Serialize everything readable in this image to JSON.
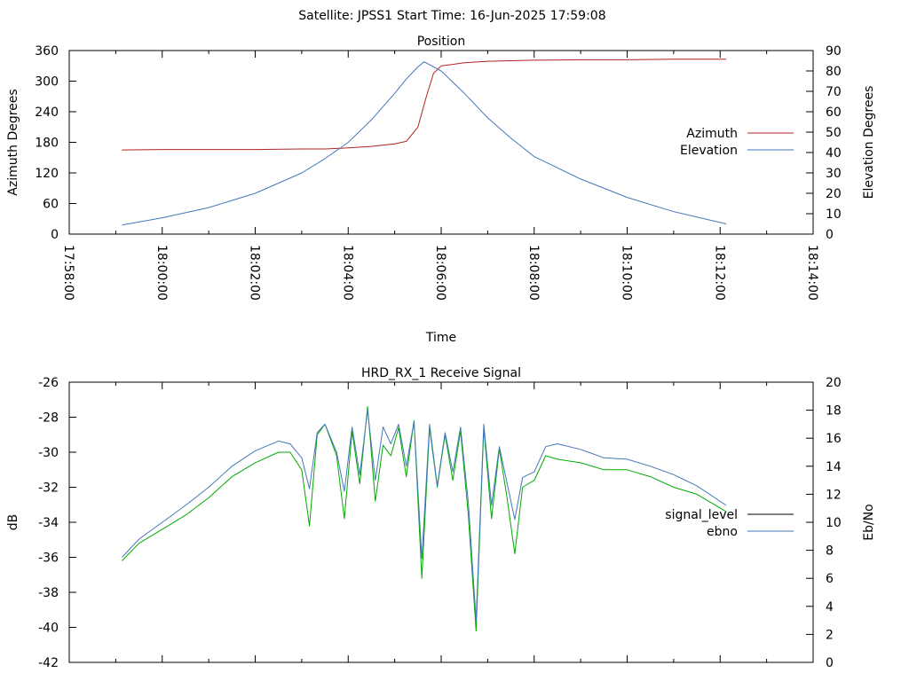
{
  "header": {
    "satellite": "Satellite: JPSS1",
    "start_time": "Start Time: 16-Jun-2025 17:59:08"
  },
  "chart_data": [
    {
      "type": "line",
      "title": "Position",
      "xlabel": "Time",
      "ylabel": "Azimuth Degrees",
      "y2label": "Elevation Degrees",
      "xlim": [
        "17:58:00",
        "18:14:00"
      ],
      "ylim": [
        0,
        360
      ],
      "y2lim": [
        0,
        90
      ],
      "x_ticks": [
        "17:58:00",
        "18:00:00",
        "18:02:00",
        "18:04:00",
        "18:06:00",
        "18:08:00",
        "18:10:00",
        "18:12:00",
        "18:14:00"
      ],
      "y_ticks": [
        "0",
        "60",
        "120",
        "180",
        "240",
        "300",
        "360"
      ],
      "y2_ticks": [
        "0",
        "10",
        "20",
        "30",
        "40",
        "50",
        "60",
        "70",
        "80",
        "90"
      ],
      "legend_position": "right",
      "series": [
        {
          "name": "Azimuth",
          "axis": "left",
          "color": "#b22222",
          "x": [
            "17:59:08",
            "18:00:00",
            "18:01:00",
            "18:02:00",
            "18:03:00",
            "18:03:30",
            "18:04:00",
            "18:04:30",
            "18:05:00",
            "18:05:15",
            "18:05:30",
            "18:05:40",
            "18:05:50",
            "18:06:00",
            "18:06:30",
            "18:07:00",
            "18:08:00",
            "18:09:00",
            "18:10:00",
            "18:11:00",
            "18:12:08"
          ],
          "values": [
            165,
            166,
            166,
            166,
            167,
            167,
            169,
            172,
            177,
            182,
            210,
            265,
            315,
            330,
            336,
            339,
            341,
            342,
            342,
            343,
            343
          ]
        },
        {
          "name": "Elevation",
          "axis": "right",
          "color": "#4477bb",
          "x": [
            "17:59:08",
            "18:00:00",
            "18:01:00",
            "18:02:00",
            "18:03:00",
            "18:03:30",
            "18:04:00",
            "18:04:30",
            "18:05:00",
            "18:05:15",
            "18:05:30",
            "18:05:38",
            "18:06:00",
            "18:06:30",
            "18:07:00",
            "18:07:30",
            "18:08:00",
            "18:09:00",
            "18:10:00",
            "18:11:00",
            "18:12:08"
          ],
          "values": [
            4.5,
            8,
            13,
            20,
            30,
            37,
            45,
            56,
            69,
            76,
            82,
            84.5,
            80,
            69,
            57,
            47,
            38,
            27,
            18,
            11,
            5
          ]
        }
      ]
    },
    {
      "type": "line",
      "title": "HRD_RX_1 Receive Signal",
      "ylabel": "dB",
      "y2label": "Eb/No",
      "xlim": [
        "17:58:00",
        "18:14:00"
      ],
      "ylim": [
        -42,
        -26
      ],
      "y2lim": [
        0,
        20
      ],
      "y_ticks": [
        "-42",
        "-40",
        "-38",
        "-36",
        "-34",
        "-32",
        "-30",
        "-28",
        "-26"
      ],
      "y2_ticks": [
        "0",
        "2",
        "4",
        "6",
        "8",
        "10",
        "12",
        "14",
        "16",
        "18",
        "20"
      ],
      "legend_position": "right",
      "series": [
        {
          "name": "signal_level",
          "axis": "left",
          "color": "#00aa00",
          "x": [
            "17:59:08",
            "17:59:30",
            "18:00:00",
            "18:00:30",
            "18:01:00",
            "18:01:30",
            "18:02:00",
            "18:02:30",
            "18:02:45",
            "18:03:00",
            "18:03:10",
            "18:03:20",
            "18:03:30",
            "18:03:45",
            "18:03:55",
            "18:04:05",
            "18:04:15",
            "18:04:25",
            "18:04:35",
            "18:04:45",
            "18:04:55",
            "18:05:05",
            "18:05:15",
            "18:05:25",
            "18:05:35",
            "18:05:45",
            "18:05:55",
            "18:06:05",
            "18:06:15",
            "18:06:25",
            "18:06:35",
            "18:06:45",
            "18:06:55",
            "18:07:05",
            "18:07:15",
            "18:07:25",
            "18:07:35",
            "18:07:45",
            "18:08:00",
            "18:08:15",
            "18:08:30",
            "18:09:00",
            "18:09:30",
            "18:10:00",
            "18:10:30",
            "18:11:00",
            "18:11:30",
            "18:12:08"
          ],
          "values": [
            -36.2,
            -35.2,
            -34.4,
            -33.6,
            -32.6,
            -31.4,
            -30.6,
            -30.0,
            -30.0,
            -31.0,
            -34.2,
            -29.0,
            -28.4,
            -30.2,
            -33.8,
            -28.8,
            -31.8,
            -27.4,
            -32.8,
            -29.6,
            -30.2,
            -28.6,
            -31.4,
            -28.2,
            -37.2,
            -28.6,
            -32.0,
            -29.0,
            -31.6,
            -28.8,
            -33.6,
            -40.2,
            -28.6,
            -33.8,
            -29.8,
            -32.6,
            -35.8,
            -32.0,
            -31.6,
            -30.2,
            -30.4,
            -30.6,
            -31.0,
            -31.0,
            -31.4,
            -32.0,
            -32.4,
            -33.4
          ]
        },
        {
          "name": "ebno",
          "axis": "right",
          "color": "#4477bb",
          "x": [
            "17:59:08",
            "17:59:30",
            "18:00:00",
            "18:00:30",
            "18:01:00",
            "18:01:30",
            "18:02:00",
            "18:02:30",
            "18:02:45",
            "18:03:00",
            "18:03:10",
            "18:03:20",
            "18:03:30",
            "18:03:45",
            "18:03:55",
            "18:04:05",
            "18:04:15",
            "18:04:25",
            "18:04:35",
            "18:04:45",
            "18:04:55",
            "18:05:05",
            "18:05:15",
            "18:05:25",
            "18:05:35",
            "18:05:45",
            "18:05:55",
            "18:06:05",
            "18:06:15",
            "18:06:25",
            "18:06:35",
            "18:06:45",
            "18:06:55",
            "18:07:05",
            "18:07:15",
            "18:07:25",
            "18:07:35",
            "18:07:45",
            "18:08:00",
            "18:08:15",
            "18:08:30",
            "18:09:00",
            "18:09:30",
            "18:10:00",
            "18:10:30",
            "18:11:00",
            "18:11:30",
            "18:12:08"
          ],
          "values": [
            7.5,
            8.8,
            10.0,
            11.2,
            12.5,
            14.0,
            15.1,
            15.8,
            15.6,
            14.6,
            12.4,
            16.4,
            17.0,
            15.0,
            12.2,
            16.8,
            13.4,
            18.0,
            13.0,
            16.8,
            15.6,
            17.0,
            14.0,
            17.2,
            7.4,
            17.0,
            12.6,
            16.4,
            13.6,
            16.8,
            11.4,
            3.0,
            17.0,
            11.2,
            15.4,
            12.8,
            10.2,
            13.2,
            13.6,
            15.4,
            15.6,
            15.2,
            14.6,
            14.5,
            14.0,
            13.4,
            12.6,
            11.2
          ]
        }
      ]
    }
  ]
}
